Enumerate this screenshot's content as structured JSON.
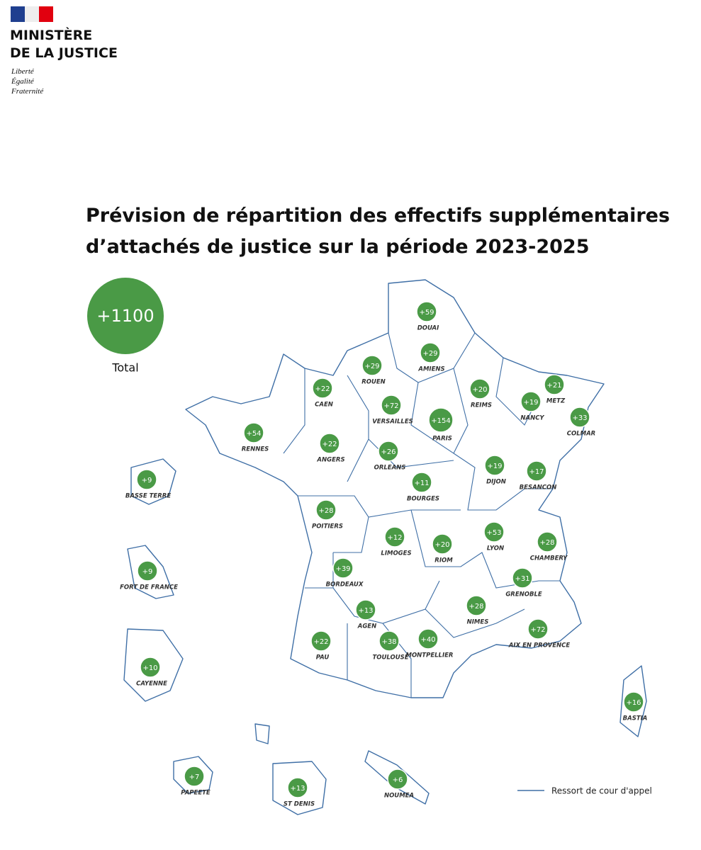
{
  "header": {
    "org_lines": [
      "MINISTÈRE",
      "DE LA JUSTICE"
    ],
    "motto": [
      "Liberté",
      "Égalité",
      "Fraternité"
    ]
  },
  "title_lines": [
    "Prévision de répartition des effectifs supplémentaires",
    "d’attachés de justice sur la période 2023-2025"
  ],
  "total": {
    "value": "+1100",
    "label": "Total"
  },
  "courts": [
    {
      "name": "DOUAI",
      "value": "+59"
    },
    {
      "name": "ROUEN",
      "value": "+29"
    },
    {
      "name": "AMIENS",
      "value": "+29"
    },
    {
      "name": "CAEN",
      "value": "+22"
    },
    {
      "name": "REIMS",
      "value": "+20"
    },
    {
      "name": "METZ",
      "value": "+21"
    },
    {
      "name": "NANCY",
      "value": "+19"
    },
    {
      "name": "VERSAILLES",
      "value": "+72"
    },
    {
      "name": "PARIS",
      "value": "+154"
    },
    {
      "name": "COLMAR",
      "value": "+33"
    },
    {
      "name": "RENNES",
      "value": "+54"
    },
    {
      "name": "ANGERS",
      "value": "+22"
    },
    {
      "name": "ORLEANS",
      "value": "+26"
    },
    {
      "name": "BASSE TERRE",
      "value": "+9"
    },
    {
      "name": "DIJON",
      "value": "+19"
    },
    {
      "name": "BESANCON",
      "value": "+17"
    },
    {
      "name": "BOURGES",
      "value": "+11"
    },
    {
      "name": "POITIERS",
      "value": "+28"
    },
    {
      "name": "LIMOGES",
      "value": "+12"
    },
    {
      "name": "LYON",
      "value": "+53"
    },
    {
      "name": "CHAMBERY",
      "value": "+28"
    },
    {
      "name": "RIOM",
      "value": "+20"
    },
    {
      "name": "FORT DE FRANCE",
      "value": "+9"
    },
    {
      "name": "BORDEAUX",
      "value": "+39"
    },
    {
      "name": "GRENOBLE",
      "value": "+31"
    },
    {
      "name": "NIMES",
      "value": "+28"
    },
    {
      "name": "AGEN",
      "value": "+13"
    },
    {
      "name": "AIX EN PROVENCE",
      "value": "+72"
    },
    {
      "name": "PAU",
      "value": "+22"
    },
    {
      "name": "TOULOUSE",
      "value": "+38"
    },
    {
      "name": "MONTPELLIER",
      "value": "+40"
    },
    {
      "name": "CAYENNE",
      "value": "+10"
    },
    {
      "name": "BASTIA",
      "value": "+16"
    },
    {
      "name": "PAPEETE",
      "value": "+7"
    },
    {
      "name": "ST DENIS",
      "value": "+13"
    },
    {
      "name": "NOUMEA",
      "value": "+6"
    }
  ],
  "legend": "Ressort de cour d'appel"
}
